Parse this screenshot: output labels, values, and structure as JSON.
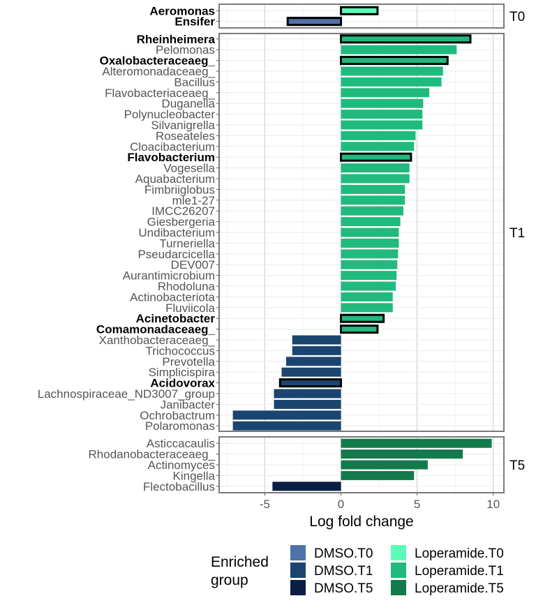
{
  "chart_data": {
    "type": "bar",
    "orientation": "horizontal",
    "facet": "rows",
    "xlabel": "Log fold change",
    "xlim": [
      -8,
      10.7
    ],
    "xticks": [
      -5,
      0,
      5,
      10
    ],
    "xtick_labels": [
      "-5",
      "0",
      "5",
      "10"
    ],
    "grid": true,
    "legend_position": "bottom",
    "legend": {
      "title": "Enriched\ngroup",
      "entries": [
        {
          "name": "DMSO.T0",
          "color": "#4d73a8"
        },
        {
          "name": "DMSO.T1",
          "color": "#1a4570"
        },
        {
          "name": "DMSO.T5",
          "color": "#0b1f45"
        },
        {
          "name": "Loperamide.T0",
          "color": "#5cfcb8"
        },
        {
          "name": "Loperamide.T1",
          "color": "#21ba7e"
        },
        {
          "name": "Loperamide.T5",
          "color": "#137a4c"
        }
      ]
    },
    "panels": [
      {
        "label": "T0",
        "bars": [
          {
            "taxon": "Aeromonas",
            "value": 2.4,
            "group": "Loperamide.T0",
            "highlight": true
          },
          {
            "taxon": "Ensifer",
            "value": -3.5,
            "group": "DMSO.T0",
            "highlight": true
          }
        ]
      },
      {
        "label": "T1",
        "bars": [
          {
            "taxon": "Rheinheimera",
            "value": 8.5,
            "group": "Loperamide.T1",
            "highlight": true
          },
          {
            "taxon": "Pelomonas",
            "value": 7.6,
            "group": "Loperamide.T1",
            "highlight": false
          },
          {
            "taxon": "Oxalobacteraceaeg_",
            "value": 7.0,
            "group": "Loperamide.T1",
            "highlight": true
          },
          {
            "taxon": "Alteromonadaceaeg_",
            "value": 6.7,
            "group": "Loperamide.T1",
            "highlight": false
          },
          {
            "taxon": "Bacillus",
            "value": 6.6,
            "group": "Loperamide.T1",
            "highlight": false
          },
          {
            "taxon": "Flavobacteriaceaeg_",
            "value": 5.8,
            "group": "Loperamide.T1",
            "highlight": false
          },
          {
            "taxon": "Duganella",
            "value": 5.4,
            "group": "Loperamide.T1",
            "highlight": false
          },
          {
            "taxon": "Polynucleobacter",
            "value": 5.35,
            "group": "Loperamide.T1",
            "highlight": false
          },
          {
            "taxon": "Silvanigrella",
            "value": 5.35,
            "group": "Loperamide.T1",
            "highlight": false
          },
          {
            "taxon": "Roseateles",
            "value": 4.9,
            "group": "Loperamide.T1",
            "highlight": false
          },
          {
            "taxon": "Cloacibacterium",
            "value": 4.8,
            "group": "Loperamide.T1",
            "highlight": false
          },
          {
            "taxon": "Flavobacterium",
            "value": 4.6,
            "group": "Loperamide.T1",
            "highlight": true
          },
          {
            "taxon": "Vogesella",
            "value": 4.5,
            "group": "Loperamide.T1",
            "highlight": false
          },
          {
            "taxon": "Aquabacterium",
            "value": 4.5,
            "group": "Loperamide.T1",
            "highlight": false
          },
          {
            "taxon": "Fimbriiglobus",
            "value": 4.2,
            "group": "Loperamide.T1",
            "highlight": false
          },
          {
            "taxon": "mle1-27",
            "value": 4.2,
            "group": "Loperamide.T1",
            "highlight": false
          },
          {
            "taxon": "IMCC26207",
            "value": 4.1,
            "group": "Loperamide.T1",
            "highlight": false
          },
          {
            "taxon": "Giesbergeria",
            "value": 3.9,
            "group": "Loperamide.T1",
            "highlight": false
          },
          {
            "taxon": "Undibacterium",
            "value": 3.8,
            "group": "Loperamide.T1",
            "highlight": false
          },
          {
            "taxon": "Turneriella",
            "value": 3.8,
            "group": "Loperamide.T1",
            "highlight": false
          },
          {
            "taxon": "Pseudarcicella",
            "value": 3.75,
            "group": "Loperamide.T1",
            "highlight": false
          },
          {
            "taxon": "DEV007",
            "value": 3.7,
            "group": "Loperamide.T1",
            "highlight": false
          },
          {
            "taxon": "Aurantimicrobium",
            "value": 3.65,
            "group": "Loperamide.T1",
            "highlight": false
          },
          {
            "taxon": "Rhodoluna",
            "value": 3.6,
            "group": "Loperamide.T1",
            "highlight": false
          },
          {
            "taxon": "Actinobacteriota",
            "value": 3.4,
            "group": "Loperamide.T1",
            "highlight": false
          },
          {
            "taxon": "Fluviicola",
            "value": 3.4,
            "group": "Loperamide.T1",
            "highlight": false
          },
          {
            "taxon": "Acinetobacter",
            "value": 2.8,
            "group": "Loperamide.T1",
            "highlight": true
          },
          {
            "taxon": "Comamonadaceaeg_",
            "value": 2.4,
            "group": "Loperamide.T1",
            "highlight": true
          },
          {
            "taxon": "Xanthobacteraceaeg_",
            "value": -3.2,
            "group": "DMSO.T1",
            "highlight": false
          },
          {
            "taxon": "Trichococcus",
            "value": -3.2,
            "group": "DMSO.T1",
            "highlight": false
          },
          {
            "taxon": "Prevotella",
            "value": -3.6,
            "group": "DMSO.T1",
            "highlight": false
          },
          {
            "taxon": "Simplicispira",
            "value": -3.9,
            "group": "DMSO.T1",
            "highlight": false
          },
          {
            "taxon": "Acidovorax",
            "value": -4.0,
            "group": "DMSO.T1",
            "highlight": true
          },
          {
            "taxon": "Lachnospiraceae_ND3007_group",
            "value": -4.4,
            "group": "DMSO.T1",
            "highlight": false
          },
          {
            "taxon": "Janibacter",
            "value": -4.4,
            "group": "DMSO.T1",
            "highlight": false
          },
          {
            "taxon": "Ochrobactrum",
            "value": -7.1,
            "group": "DMSO.T1",
            "highlight": false
          },
          {
            "taxon": "Polaromonas",
            "value": -7.1,
            "group": "DMSO.T1",
            "highlight": false
          }
        ]
      },
      {
        "label": "T5",
        "bars": [
          {
            "taxon": "Asticcacaulis",
            "value": 9.9,
            "group": "Loperamide.T5",
            "highlight": false
          },
          {
            "taxon": "Rhodanobacteraceaeg_",
            "value": 8.0,
            "group": "Loperamide.T5",
            "highlight": false
          },
          {
            "taxon": "Actinomyces",
            "value": 5.7,
            "group": "Loperamide.T5",
            "highlight": false
          },
          {
            "taxon": "Kingella",
            "value": 4.8,
            "group": "Loperamide.T5",
            "highlight": false
          },
          {
            "taxon": "Flectobacillus",
            "value": -4.5,
            "group": "DMSO.T5",
            "highlight": false
          }
        ]
      }
    ]
  }
}
